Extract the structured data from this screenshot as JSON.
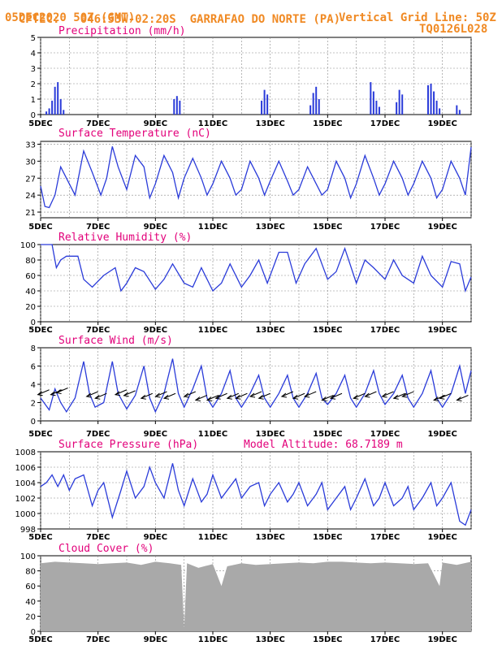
{
  "header": {
    "source": "CPTEC:",
    "coords": "046:53W-02:20S",
    "location": "GARRAFAO DO NORTE (PA)",
    "date": "05DEC2020 50Z (GMT)",
    "grid_line": "Vertical Grid Line: 50Z",
    "model": "TQ0126L028"
  },
  "x_ticks": [
    "5DEC",
    "7DEC",
    "9DEC",
    "11DEC",
    "13DEC",
    "15DEC",
    "17DEC",
    "19DEC"
  ],
  "colors": {
    "line": "#2a3bd9",
    "bar": "#2a3bd9",
    "cloud": "#a9a9a9",
    "title": "#e2007a",
    "header": "#f08a24"
  },
  "chart_data": [
    {
      "type": "bar",
      "title": "Precipitation (mm/h)",
      "ylim": [
        0,
        5
      ],
      "y_ticks": [
        0,
        1,
        2,
        3,
        4,
        5
      ],
      "x_unit": "days since 5DEC 00Z",
      "x": [
        0.2,
        0.3,
        0.4,
        0.5,
        0.6,
        0.7,
        0.8,
        4.65,
        4.75,
        4.85,
        7.7,
        7.8,
        7.9,
        9.4,
        9.5,
        9.6,
        9.7,
        11.5,
        11.6,
        11.7,
        11.8,
        12.4,
        12.5,
        12.6,
        13.5,
        13.6,
        13.7,
        13.8,
        13.9,
        14.5,
        14.6
      ],
      "values": [
        0.2,
        0.4,
        0.9,
        1.8,
        2.1,
        1.0,
        0.3,
        1.0,
        1.2,
        0.9,
        0.9,
        1.6,
        1.3,
        0.6,
        1.4,
        1.8,
        1.0,
        2.1,
        1.5,
        0.9,
        0.5,
        0.8,
        1.6,
        1.3,
        1.9,
        2.0,
        1.5,
        0.9,
        0.4,
        0.6,
        0.3
      ]
    },
    {
      "type": "line",
      "title": "Surface Temperature (nC)",
      "ylim": [
        20,
        33.5
      ],
      "y_ticks": [
        21,
        24,
        27,
        30,
        33
      ],
      "x": [
        0,
        0.15,
        0.3,
        0.5,
        0.7,
        0.9,
        1.2,
        1.5,
        1.8,
        2.1,
        2.3,
        2.5,
        2.7,
        3.0,
        3.3,
        3.6,
        3.8,
        4.0,
        4.3,
        4.6,
        4.8,
        5.0,
        5.3,
        5.6,
        5.8,
        6.0,
        6.3,
        6.6,
        6.8,
        7.0,
        7.3,
        7.6,
        7.8,
        8.0,
        8.3,
        8.6,
        8.8,
        9.0,
        9.3,
        9.6,
        9.8,
        10.0,
        10.3,
        10.6,
        10.8,
        11.0,
        11.3,
        11.6,
        11.8,
        12.0,
        12.3,
        12.6,
        12.8,
        13.0,
        13.3,
        13.6,
        13.8,
        14.0,
        14.3,
        14.6,
        14.8,
        15.0
      ],
      "values": [
        25.6,
        22,
        21.8,
        24,
        29,
        27,
        24,
        31.8,
        28,
        24,
        27,
        32.6,
        29,
        25,
        31,
        29,
        23.5,
        26,
        31,
        28,
        23.5,
        27,
        30.5,
        27,
        24,
        26,
        30,
        27,
        24,
        25,
        30,
        27,
        24,
        26.5,
        30,
        26.5,
        24,
        25,
        29,
        26,
        24,
        25,
        30,
        27,
        23.5,
        26,
        31,
        27,
        24,
        26,
        30,
        27,
        24,
        26,
        30,
        27,
        23.5,
        25,
        30,
        27,
        24,
        32.5
      ]
    },
    {
      "type": "line",
      "title": "Relative Humidity (%)",
      "ylim": [
        0,
        100
      ],
      "y_ticks": [
        0,
        20,
        40,
        60,
        80,
        100
      ],
      "x": [
        0,
        0.4,
        0.55,
        0.7,
        0.9,
        1.3,
        1.5,
        1.8,
        2.2,
        2.6,
        2.8,
        3.0,
        3.3,
        3.6,
        4.0,
        4.3,
        4.6,
        5.0,
        5.3,
        5.6,
        6.0,
        6.3,
        6.6,
        7.0,
        7.3,
        7.6,
        7.9,
        8.3,
        8.6,
        8.9,
        9.2,
        9.6,
        10.0,
        10.3,
        10.6,
        11.0,
        11.3,
        11.6,
        12.0,
        12.3,
        12.6,
        13.0,
        13.3,
        13.6,
        14.0,
        14.3,
        14.6,
        14.8,
        15.0
      ],
      "values": [
        100,
        100,
        70,
        80,
        85,
        85,
        55,
        45,
        60,
        70,
        40,
        50,
        70,
        65,
        42,
        55,
        75,
        50,
        45,
        70,
        40,
        50,
        75,
        45,
        60,
        80,
        50,
        90,
        90,
        50,
        75,
        95,
        55,
        65,
        95,
        50,
        80,
        70,
        55,
        80,
        60,
        50,
        85,
        60,
        45,
        78,
        75,
        40,
        58
      ]
    },
    {
      "type": "line",
      "title": "Surface Wind (m/s)",
      "ylim": [
        0,
        8
      ],
      "y_ticks": [
        0,
        2,
        4,
        6,
        8
      ],
      "x": [
        0,
        0.3,
        0.5,
        0.7,
        0.9,
        1.2,
        1.5,
        1.7,
        1.9,
        2.2,
        2.5,
        2.7,
        3.0,
        3.3,
        3.6,
        3.8,
        4.0,
        4.3,
        4.6,
        4.8,
        5.0,
        5.3,
        5.6,
        5.8,
        6.0,
        6.3,
        6.6,
        6.8,
        7.0,
        7.3,
        7.6,
        7.8,
        8.0,
        8.3,
        8.6,
        8.8,
        9.0,
        9.3,
        9.6,
        9.8,
        10.0,
        10.3,
        10.6,
        10.8,
        11.0,
        11.3,
        11.6,
        11.8,
        12.0,
        12.3,
        12.6,
        12.8,
        13.0,
        13.3,
        13.6,
        13.8,
        14.0,
        14.3,
        14.6,
        14.8,
        15.0
      ],
      "values": [
        2.5,
        1.2,
        3.5,
        2,
        1,
        2.5,
        6.5,
        3,
        1.5,
        2,
        6.5,
        3,
        1.3,
        2.8,
        6,
        2.5,
        1,
        3,
        6.8,
        3,
        1.5,
        3.5,
        6,
        2.5,
        1.5,
        3,
        5.5,
        2.5,
        1.5,
        3,
        5,
        2.5,
        1.5,
        3,
        5,
        2.5,
        1.5,
        3,
        5.2,
        2.5,
        1.8,
        3,
        5,
        2.5,
        1.5,
        3,
        5.5,
        3,
        1.8,
        3,
        5,
        2.5,
        1.5,
        3,
        5.5,
        2.5,
        1.5,
        3,
        6,
        3,
        5.5
      ],
      "arrow_x": [
        0.3,
        0.75,
        0.95,
        2.0,
        2.3,
        3.0,
        3.3,
        3.9,
        4.4,
        4.7,
        5.4,
        5.8,
        6.2,
        6.5,
        6.9,
        7.2,
        7.7,
        8.0,
        8.8,
        9.2,
        9.6,
        10.2,
        10.5,
        11.3,
        11.7,
        12.3,
        12.7,
        13.0,
        14.1,
        14.3,
        14.9
      ],
      "arrow_y": [
        3.4,
        3.4,
        3.6,
        3.2,
        3.0,
        3.4,
        3.3,
        3.0,
        3.2,
        3.0,
        3.2,
        2.8,
        2.8,
        3.0,
        3.0,
        3.0,
        3.2,
        3.0,
        3.2,
        3.0,
        3.2,
        2.8,
        3.0,
        3.0,
        3.2,
        3.2,
        3.0,
        3.2,
        2.8,
        3.0,
        2.8
      ]
    },
    {
      "type": "line",
      "title": "Surface Pressure (hPa)",
      "annotation": "Model Altitude: 68.7189 m",
      "ylim": [
        998,
        1008
      ],
      "y_ticks": [
        998,
        1000,
        1002,
        1004,
        1006,
        1008
      ],
      "x": [
        0,
        0.2,
        0.4,
        0.6,
        0.8,
        1.0,
        1.2,
        1.5,
        1.8,
        2.0,
        2.2,
        2.5,
        2.8,
        3.0,
        3.3,
        3.6,
        3.8,
        4.0,
        4.3,
        4.6,
        4.8,
        5.0,
        5.3,
        5.6,
        5.8,
        6.0,
        6.3,
        6.6,
        6.8,
        7.0,
        7.3,
        7.6,
        7.8,
        8.0,
        8.3,
        8.6,
        8.8,
        9.0,
        9.3,
        9.6,
        9.8,
        10.0,
        10.3,
        10.6,
        10.8,
        11.0,
        11.3,
        11.6,
        11.8,
        12.0,
        12.3,
        12.6,
        12.8,
        13.0,
        13.3,
        13.6,
        13.8,
        14.0,
        14.3,
        14.6,
        14.8,
        15.0
      ],
      "values": [
        1003.5,
        1004,
        1005,
        1003.5,
        1005,
        1003,
        1004.5,
        1005,
        1001,
        1003,
        1004,
        999.5,
        1003,
        1005.5,
        1002,
        1003.5,
        1006,
        1004,
        1002,
        1006.5,
        1003,
        1001,
        1004.5,
        1001.5,
        1002.5,
        1005,
        1002,
        1003.5,
        1004.5,
        1002,
        1003.5,
        1004,
        1001,
        1002.5,
        1004,
        1001.5,
        1002.5,
        1004,
        1001,
        1002.5,
        1004,
        1000.5,
        1002,
        1003.5,
        1000.5,
        1002,
        1004.5,
        1001,
        1002,
        1004,
        1001,
        1002,
        1003.5,
        1000.5,
        1002,
        1004,
        1001,
        1002,
        1004,
        999,
        998.5,
        1000.5
      ]
    },
    {
      "type": "area",
      "title": "Cloud Cover (%)",
      "ylim": [
        0,
        100
      ],
      "y_ticks": [
        0,
        20,
        40,
        60,
        80,
        100
      ],
      "x": [
        0,
        0.5,
        1.0,
        1.5,
        2.0,
        2.5,
        3.0,
        3.5,
        4.0,
        4.5,
        4.9,
        5.0,
        5.1,
        5.5,
        6.0,
        6.3,
        6.5,
        7.0,
        7.5,
        8.0,
        8.5,
        9.0,
        9.5,
        10.0,
        10.5,
        11.0,
        11.5,
        12.0,
        12.5,
        13.0,
        13.5,
        13.9,
        14.0,
        14.5,
        15.0
      ],
      "values": [
        90,
        92,
        91,
        90,
        89,
        90,
        91,
        88,
        92,
        90,
        88,
        4,
        90,
        84,
        89,
        60,
        86,
        90,
        88,
        89,
        90,
        91,
        90,
        92,
        92,
        91,
        90,
        91,
        90,
        89,
        90,
        60,
        91,
        88,
        92
      ]
    }
  ]
}
